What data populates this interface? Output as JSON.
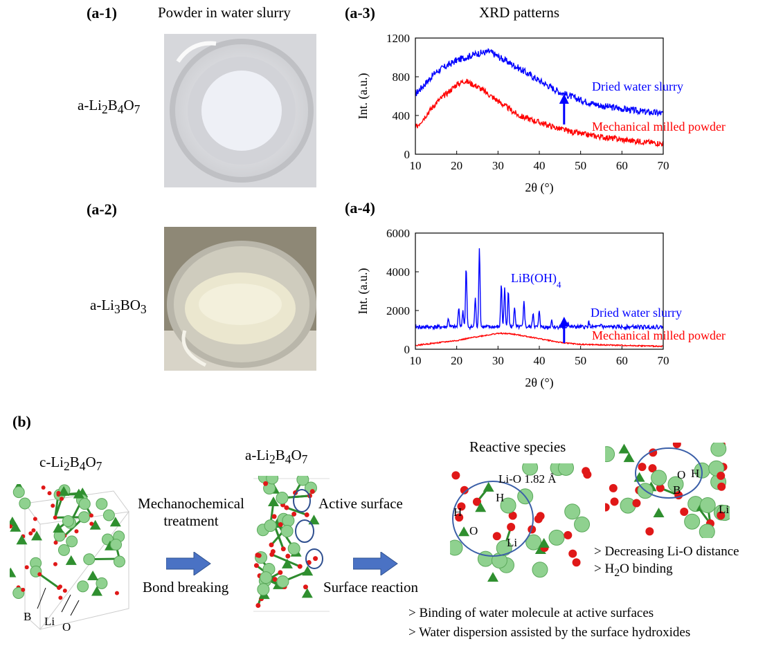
{
  "panels": {
    "a1": {
      "label": "(a-1)",
      "title": "Powder in water slurry",
      "material": "a-Li2B4O7"
    },
    "a2": {
      "label": "(a-2)",
      "material": "a-Li3BO3"
    },
    "a3": {
      "label": "(a-3)",
      "title": "XRD patterns"
    },
    "a4": {
      "label": "(a-4)"
    },
    "b": {
      "label": "(b)"
    }
  },
  "chart_data": [
    {
      "type": "line",
      "panel": "(a-3)",
      "title": "XRD patterns",
      "xlabel": "2θ (°)",
      "ylabel": "Int. (a.u.)",
      "xlim": [
        10,
        70
      ],
      "ylim": [
        0,
        1200
      ],
      "xticks": [
        10,
        20,
        30,
        40,
        50,
        60,
        70
      ],
      "yticks": [
        0,
        400,
        800,
        1200
      ],
      "series": [
        {
          "name": "Dried water slurry",
          "color": "#0000ff",
          "x": [
            10,
            15,
            20,
            25,
            28,
            30,
            35,
            40,
            45,
            50,
            55,
            60,
            65,
            70
          ],
          "y": [
            620,
            850,
            970,
            1040,
            1060,
            1010,
            890,
            760,
            640,
            560,
            500,
            470,
            440,
            420
          ]
        },
        {
          "name": "Mechanical milled powder",
          "color": "#ff0000",
          "x": [
            10,
            15,
            20,
            22,
            25,
            30,
            35,
            40,
            45,
            50,
            55,
            60,
            65,
            70
          ],
          "y": [
            270,
            530,
            720,
            760,
            700,
            550,
            400,
            330,
            260,
            210,
            180,
            150,
            130,
            110
          ]
        }
      ],
      "annotations": [
        {
          "type": "arrow",
          "x": 46,
          "color": "#0000ff"
        }
      ]
    },
    {
      "type": "line",
      "panel": "(a-4)",
      "xlabel": "2θ (°)",
      "ylabel": "Int. (a.u.)",
      "xlim": [
        10,
        70
      ],
      "ylim": [
        0,
        6000
      ],
      "xticks": [
        10,
        20,
        30,
        40,
        50,
        60,
        70
      ],
      "yticks": [
        0,
        2000,
        4000,
        6000
      ],
      "peak_label": "LiB(OH)4",
      "series": [
        {
          "name": "Dried water slurry",
          "color": "#0000ff",
          "baseline": 1150,
          "peaks": [
            [
              18,
              1600
            ],
            [
              20.5,
              2200
            ],
            [
              21.5,
              2000
            ],
            [
              22.3,
              4200
            ],
            [
              24.5,
              2600
            ],
            [
              25.5,
              5200
            ],
            [
              30.8,
              3400
            ],
            [
              31.6,
              3200
            ],
            [
              32.5,
              3100
            ],
            [
              34,
              2200
            ],
            [
              36.3,
              2500
            ],
            [
              38.5,
              1900
            ],
            [
              40,
              2000
            ],
            [
              43,
              1500
            ],
            [
              47,
              1400
            ],
            [
              52,
              1400
            ],
            [
              55,
              1300
            ]
          ]
        },
        {
          "name": "Mechanical milled powder",
          "color": "#ff0000",
          "x": [
            10,
            20,
            25,
            30,
            33,
            36,
            40,
            45,
            50,
            60,
            70
          ],
          "y": [
            200,
            450,
            650,
            820,
            800,
            700,
            550,
            350,
            250,
            200,
            150
          ]
        }
      ],
      "annotations": [
        {
          "type": "arrow",
          "x": 46,
          "color": "#0000ff"
        }
      ]
    }
  ],
  "b": {
    "c_material": "c-Li2B4O7",
    "a_material": "a-Li2B4O7",
    "mech_treatment": "Mechanochemical treatment",
    "bond_breaking": "Bond breaking",
    "active_surface": "Active surface",
    "surface_reaction": "Surface reaction",
    "reactive_species": "Reactive species",
    "lio_distance": "Li-O 1.82 Å",
    "atom_labels": {
      "B": "B",
      "Li": "Li",
      "O": "O",
      "H": "H"
    },
    "notes_right": [
      "> Decreasing Li-O distance",
      "> H2O binding"
    ],
    "notes_bottom": [
      "> Binding of water molecule at active surfaces",
      "> Water dispersion assisted by the surface hydroxides"
    ]
  }
}
